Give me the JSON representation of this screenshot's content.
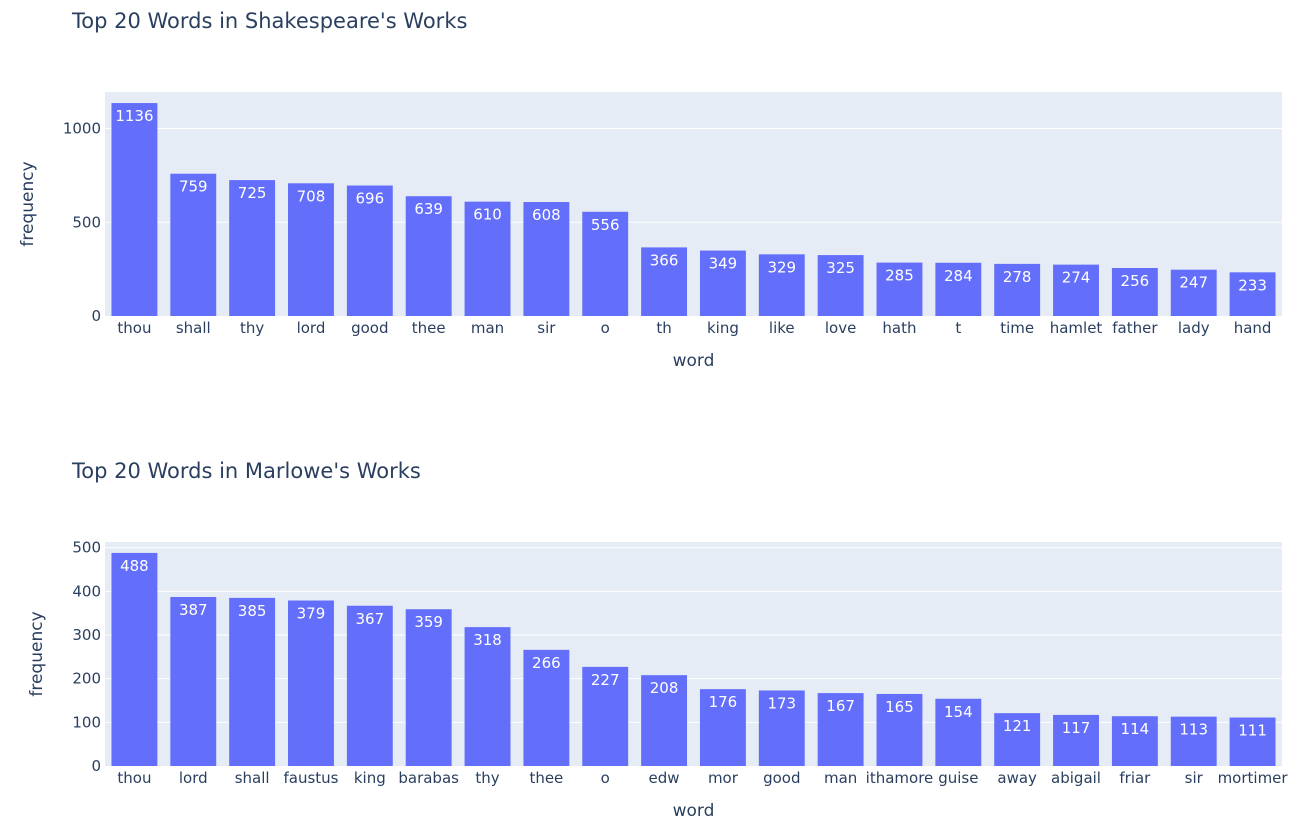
{
  "colors": {
    "bar": "#636efa",
    "plot_bg": "#e5ecf6",
    "grid": "#ffffff",
    "text": "#2a3f5f"
  },
  "chart_data": [
    {
      "type": "bar",
      "title": "Top 20 Words in Shakespeare's Works",
      "xlabel": "word",
      "ylabel": "frequency",
      "ylim": [
        0,
        1195
      ],
      "yticks": [
        0,
        500,
        1000
      ],
      "grid": true,
      "categories": [
        "thou",
        "shall",
        "thy",
        "lord",
        "good",
        "thee",
        "man",
        "sir",
        "o",
        "th",
        "king",
        "like",
        "love",
        "hath",
        "t",
        "time",
        "hamlet",
        "father",
        "lady",
        "hand"
      ],
      "values": [
        1136,
        759,
        725,
        708,
        696,
        639,
        610,
        608,
        556,
        366,
        349,
        329,
        325,
        285,
        284,
        278,
        274,
        256,
        247,
        233
      ]
    },
    {
      "type": "bar",
      "title": "Top 20 Words in Marlowe's Works",
      "xlabel": "word",
      "ylabel": "frequency",
      "ylim": [
        0,
        513
      ],
      "yticks": [
        0,
        100,
        200,
        300,
        400,
        500
      ],
      "grid": true,
      "categories": [
        "thou",
        "lord",
        "shall",
        "faustus",
        "king",
        "barabas",
        "thy",
        "thee",
        "o",
        "edw",
        "mor",
        "good",
        "man",
        "ithamore",
        "guise",
        "away",
        "abigail",
        "friar",
        "sir",
        "mortimer"
      ],
      "values": [
        488,
        387,
        385,
        379,
        367,
        359,
        318,
        266,
        227,
        208,
        176,
        173,
        167,
        165,
        154,
        121,
        117,
        114,
        113,
        111
      ]
    }
  ]
}
